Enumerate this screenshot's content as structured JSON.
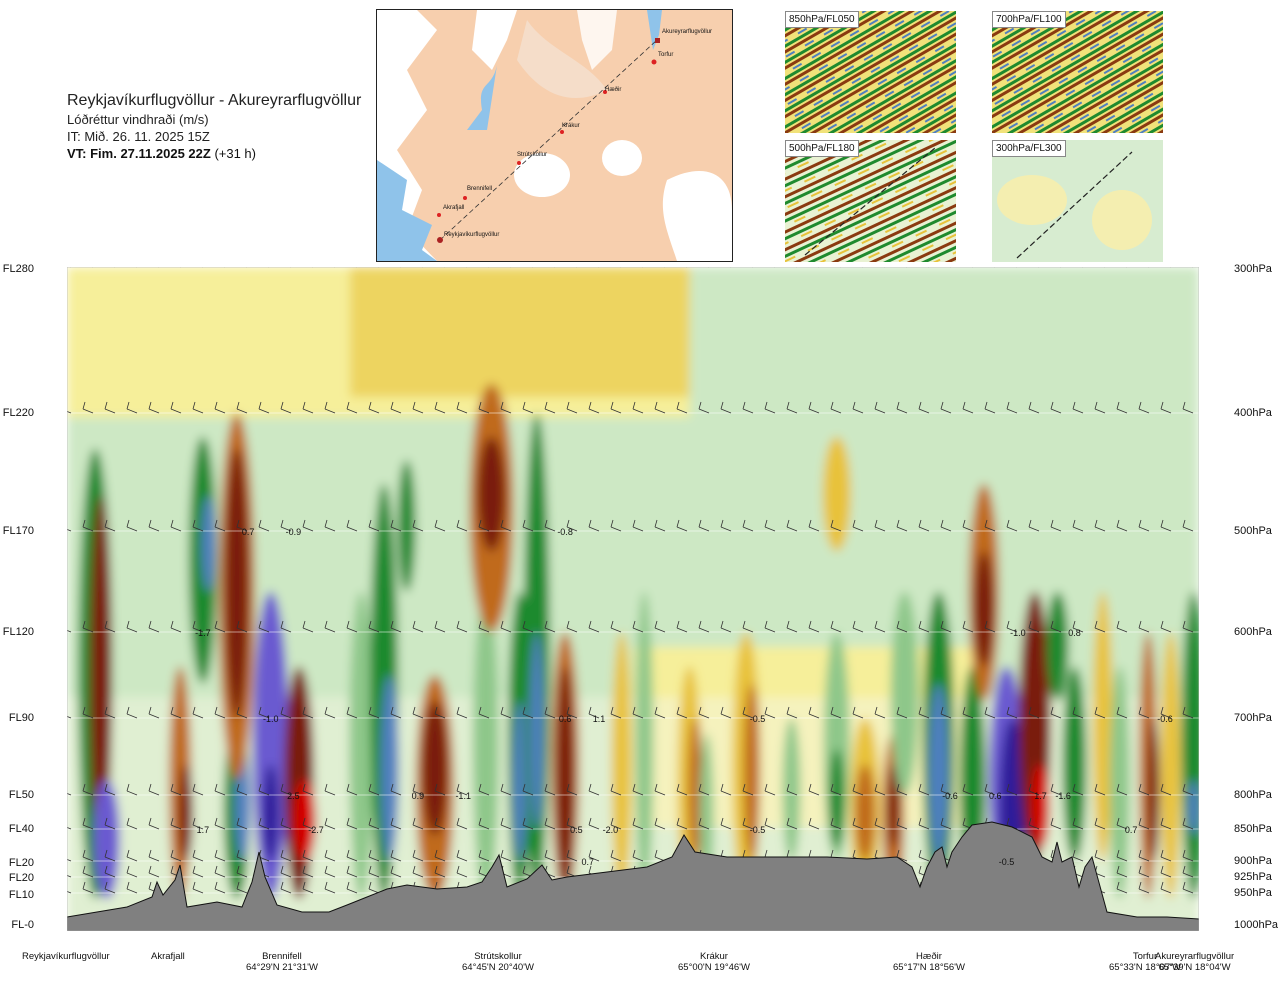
{
  "header": {
    "title": "Reykjavíkurflugvöllur - Akureyrarflugvöllur",
    "subtitle": "Lóðréttur vindhraði (m/s)",
    "it": "IT: Mið. 26. 11. 2025 15Z",
    "vt_bold": "VT: Fim. 27.11.2025 22Z",
    "vt_rest": "(+31 h)"
  },
  "map": {
    "labels": [
      "Akureyrarflugvöllur",
      "Torfur",
      "Hæðir",
      "Krákur",
      "Strútskollur",
      "Brennifell",
      "Akrafjall",
      "Reykjavíkurflugvöllur"
    ]
  },
  "thumbnails": [
    {
      "label": "850hPa/FL050"
    },
    {
      "label": "700hPa/FL100"
    },
    {
      "label": "500hPa/FL180"
    },
    {
      "label": "300hPa/FL300"
    }
  ],
  "flight_levels": [
    "FL280",
    "FL220",
    "FL170",
    "FL120",
    "FL90",
    "FL50",
    "FL40",
    "FL20",
    "FL20",
    "FL10",
    "FL-0"
  ],
  "pressure_levels": [
    "300hPa",
    "400hPa",
    "500hPa",
    "600hPa",
    "700hPa",
    "800hPa",
    "850hPa",
    "900hPa",
    "925hPa",
    "950hPa",
    "1000hPa"
  ],
  "stations": [
    {
      "name": "Reykjavíkurflugvöllur",
      "coord": ""
    },
    {
      "name": "Akrafjall",
      "coord": ""
    },
    {
      "name": "Brennifell",
      "coord": "64°29'N 21°31'W"
    },
    {
      "name": "Strútskollur",
      "coord": "64°45'N 20°40'W"
    },
    {
      "name": "Krákur",
      "coord": "65°00'N 19°46'W"
    },
    {
      "name": "Hæðir",
      "coord": "65°17'N 18°56'W"
    },
    {
      "name": "Torfur",
      "coord": "65°33'N 18°07'W"
    },
    {
      "name": "Akureyrarflugvöllur",
      "coord": "65°39'N 18°04'W"
    }
  ],
  "chart_data": {
    "type": "heatmap",
    "title": "Reykjavíkurflugvöllur - Akureyrarflugvöllur",
    "subtitle": "Lóðréttur vindhraði (m/s)",
    "y_left_ticks": [
      "FL280",
      "FL220",
      "FL170",
      "FL120",
      "FL90",
      "FL50",
      "FL40",
      "FL20",
      "FL20",
      "FL10",
      "FL-0"
    ],
    "y_right_ticks": [
      "300hPa",
      "400hPa",
      "500hPa",
      "600hPa",
      "700hPa",
      "800hPa",
      "850hPa",
      "900hPa",
      "925hPa",
      "950hPa",
      "1000hPa"
    ],
    "x_ticks": [
      "Reykjavíkurflugvöllur",
      "Akrafjall",
      "Brennifell",
      "Strútskollur",
      "Krákur",
      "Hæðir",
      "Torfur",
      "Akureyrarflugvöllur"
    ],
    "color_scale": {
      "strong_down": "#7a1a0e",
      "down": "#c06a1a",
      "weak_down": "#e8c23a",
      "light_down": "#f6ef9a",
      "neutral": "#f3f6df",
      "light_up": "#cde8c4",
      "weak_up": "#8ec78a",
      "up": "#1f8a2e",
      "strong_up": "#4f7fbf",
      "very_strong_up": "#6a5ad0",
      "extreme_down": "#d40000",
      "extreme_up": "#2d1a9a",
      "terrain": "#808080"
    },
    "annotations": [
      {
        "x_km": 0.12,
        "p_hpa": 600,
        "value": "-1.7"
      },
      {
        "x_km": 0.12,
        "p_hpa": 850,
        "value": "1.7"
      },
      {
        "x_km": 0.16,
        "p_hpa": 500,
        "value": "0.7"
      },
      {
        "x_km": 0.2,
        "p_hpa": 500,
        "value": "-0.9"
      },
      {
        "x_km": 0.18,
        "p_hpa": 700,
        "value": "-1.0"
      },
      {
        "x_km": 0.2,
        "p_hpa": 800,
        "value": "2.5"
      },
      {
        "x_km": 0.22,
        "p_hpa": 850,
        "value": "-2.7"
      },
      {
        "x_km": 0.31,
        "p_hpa": 800,
        "value": "0.9"
      },
      {
        "x_km": 0.35,
        "p_hpa": 800,
        "value": "-1.1"
      },
      {
        "x_km": 0.44,
        "p_hpa": 500,
        "value": "-0.8"
      },
      {
        "x_km": 0.44,
        "p_hpa": 700,
        "value": "0.6"
      },
      {
        "x_km": 0.47,
        "p_hpa": 700,
        "value": "1.1"
      },
      {
        "x_km": 0.45,
        "p_hpa": 850,
        "value": "0.5"
      },
      {
        "x_km": 0.48,
        "p_hpa": 850,
        "value": "-2.0"
      },
      {
        "x_km": 0.46,
        "p_hpa": 900,
        "value": "0.7"
      },
      {
        "x_km": 0.61,
        "p_hpa": 700,
        "value": "-0.5"
      },
      {
        "x_km": 0.61,
        "p_hpa": 850,
        "value": "-0.5"
      },
      {
        "x_km": 0.78,
        "p_hpa": 800,
        "value": "-0.6"
      },
      {
        "x_km": 0.84,
        "p_hpa": 600,
        "value": "-1.0"
      },
      {
        "x_km": 0.82,
        "p_hpa": 800,
        "value": "0.6"
      },
      {
        "x_km": 0.89,
        "p_hpa": 600,
        "value": "0.8"
      },
      {
        "x_km": 0.86,
        "p_hpa": 800,
        "value": "1.7"
      },
      {
        "x_km": 0.88,
        "p_hpa": 800,
        "value": "-1.6"
      },
      {
        "x_km": 0.83,
        "p_hpa": 900,
        "value": "-0.5"
      },
      {
        "x_km": 0.94,
        "p_hpa": 850,
        "value": "0.7"
      },
      {
        "x_km": 0.97,
        "p_hpa": 700,
        "value": "-0.6"
      }
    ],
    "grid": true
  }
}
